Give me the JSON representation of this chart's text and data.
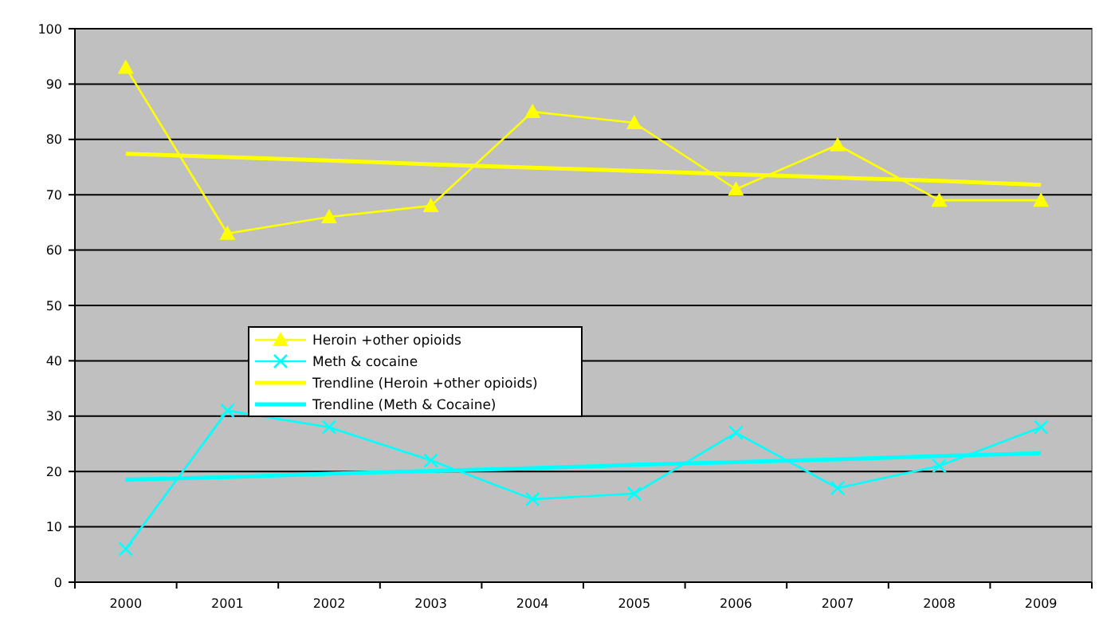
{
  "chart_data": {
    "type": "line",
    "categories": [
      "2000",
      "2001",
      "2002",
      "2003",
      "2004",
      "2005",
      "2006",
      "2007",
      "2008",
      "2009"
    ],
    "series": [
      {
        "name": "Heroin +other opioids",
        "color": "#ffff00",
        "marker": "triangle",
        "values": [
          93,
          63,
          66,
          68,
          85,
          83,
          71,
          79,
          69,
          69
        ]
      },
      {
        "name": "Meth & cocaine",
        "color": "#00ffff",
        "marker": "cross",
        "values": [
          6,
          31,
          28,
          22,
          15,
          16,
          27,
          17,
          21,
          28
        ]
      },
      {
        "name": "Trendline (Heroin +other opioids)",
        "color": "#ffff00",
        "marker": "none",
        "values": [
          77.4,
          76.8,
          76.2,
          75.5,
          74.9,
          74.3,
          73.7,
          73.1,
          72.5,
          71.8
        ]
      },
      {
        "name": "Trendline (Meth & Cocaine)",
        "color": "#00ffff",
        "marker": "none",
        "values": [
          18.5,
          19.0,
          19.6,
          20.1,
          20.6,
          21.2,
          21.7,
          22.2,
          22.8,
          23.3
        ]
      }
    ],
    "ylim": [
      0,
      100
    ],
    "yticks": [
      0,
      10,
      20,
      30,
      40,
      50,
      60,
      70,
      80,
      90,
      100
    ],
    "grid": "y",
    "legend": "left"
  }
}
